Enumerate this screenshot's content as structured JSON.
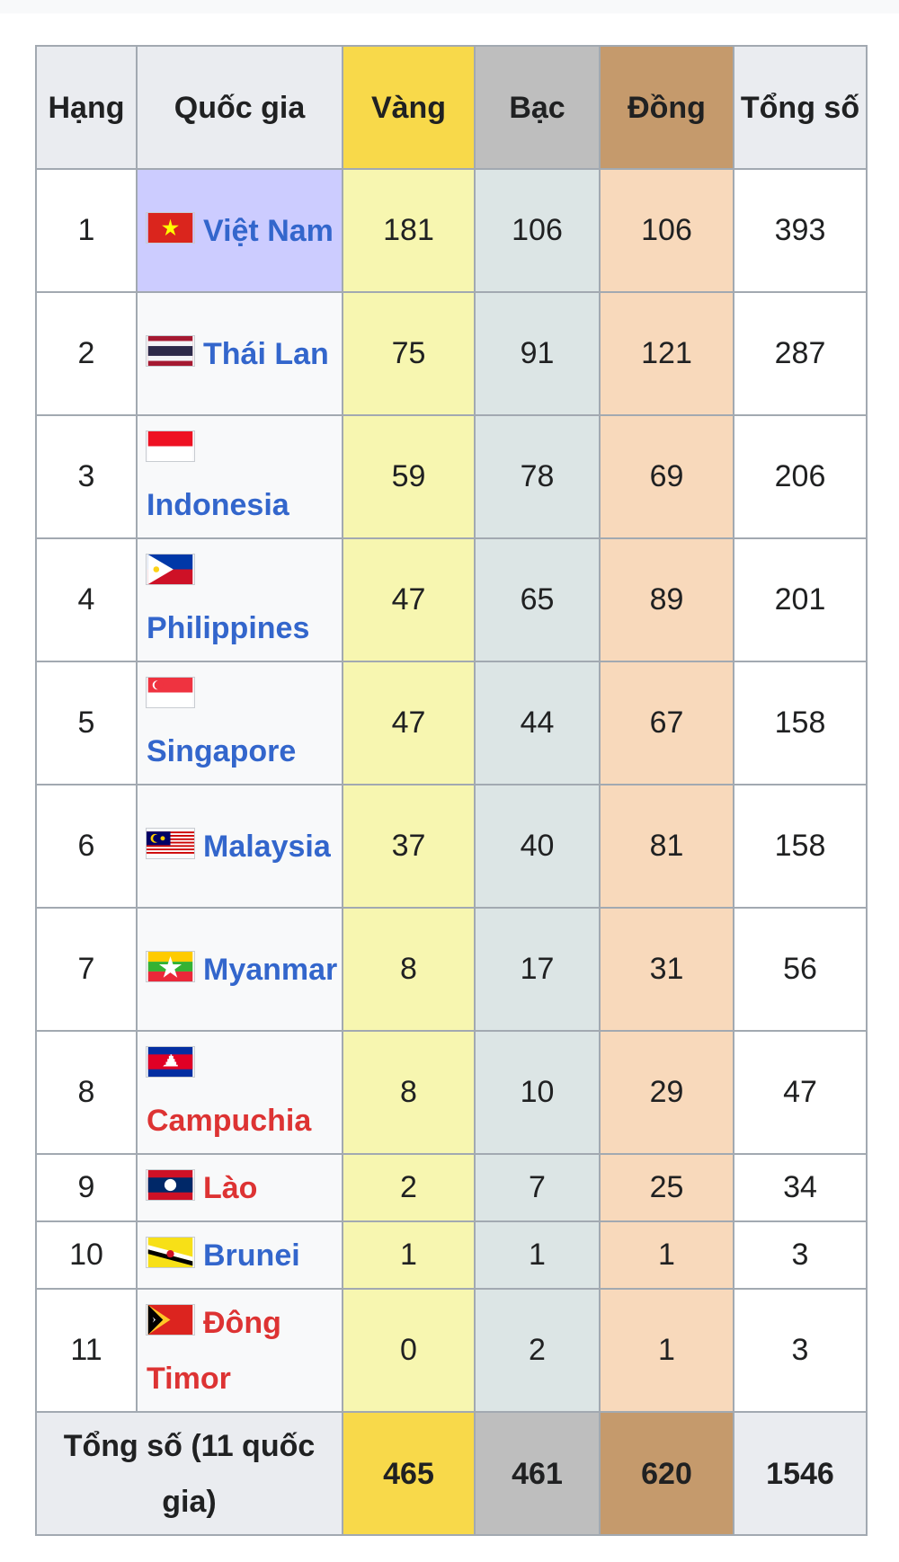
{
  "headers": {
    "rank": "Hạng",
    "country": "Quốc gia",
    "gold": "Vàng",
    "silver": "Bạc",
    "bronze": "Đồng",
    "total": "Tổng số"
  },
  "colors": {
    "gold_header": "#f8d94a",
    "silver_header": "#bebebe",
    "bronze_header": "#c59a6c",
    "gold_cell": "#f7f6b0",
    "silver_cell": "#dce5e5",
    "bronze_cell": "#f8d9bb",
    "host_highlight": "#ccccff",
    "link_blue": "#3366cc",
    "link_red": "#dd3333"
  },
  "rows": [
    {
      "rank": "1",
      "country": "Việt Nam",
      "flag": "vietnam-flag",
      "link": "blue",
      "host": true,
      "gold": "181",
      "silver": "106",
      "bronze": "106",
      "total": "393"
    },
    {
      "rank": "2",
      "country": "Thái Lan",
      "flag": "thailand-flag",
      "link": "blue",
      "gold": "75",
      "silver": "91",
      "bronze": "121",
      "total": "287"
    },
    {
      "rank": "3",
      "country": "Indonesia",
      "flag": "indonesia-flag",
      "link": "blue",
      "gold": "59",
      "silver": "78",
      "bronze": "69",
      "total": "206"
    },
    {
      "rank": "4",
      "country": "Philippines",
      "flag": "philippines-flag",
      "link": "blue",
      "gold": "47",
      "silver": "65",
      "bronze": "89",
      "total": "201"
    },
    {
      "rank": "5",
      "country": "Singapore",
      "flag": "singapore-flag",
      "link": "blue",
      "gold": "47",
      "silver": "44",
      "bronze": "67",
      "total": "158"
    },
    {
      "rank": "6",
      "country": "Malaysia",
      "flag": "malaysia-flag",
      "link": "blue",
      "gold": "37",
      "silver": "40",
      "bronze": "81",
      "total": "158"
    },
    {
      "rank": "7",
      "country": "Myanmar",
      "flag": "myanmar-flag",
      "link": "blue",
      "gold": "8",
      "silver": "17",
      "bronze": "31",
      "total": "56"
    },
    {
      "rank": "8",
      "country": "Campuchia",
      "flag": "cambodia-flag",
      "link": "red",
      "gold": "8",
      "silver": "10",
      "bronze": "29",
      "total": "47"
    },
    {
      "rank": "9",
      "country": "Lào",
      "flag": "laos-flag",
      "link": "red",
      "gold": "2",
      "silver": "7",
      "bronze": "25",
      "total": "34"
    },
    {
      "rank": "10",
      "country": "Brunei",
      "flag": "brunei-flag",
      "link": "blue",
      "gold": "1",
      "silver": "1",
      "bronze": "1",
      "total": "3"
    },
    {
      "rank": "11",
      "country": "Đông Timor",
      "flag": "east-timor-flag",
      "link": "red",
      "gold": "0",
      "silver": "2",
      "bronze": "1",
      "total": "3"
    }
  ],
  "footer": {
    "label": "Tổng số (11 quốc gia)",
    "gold": "465",
    "silver": "461",
    "bronze": "620",
    "total": "1546"
  }
}
